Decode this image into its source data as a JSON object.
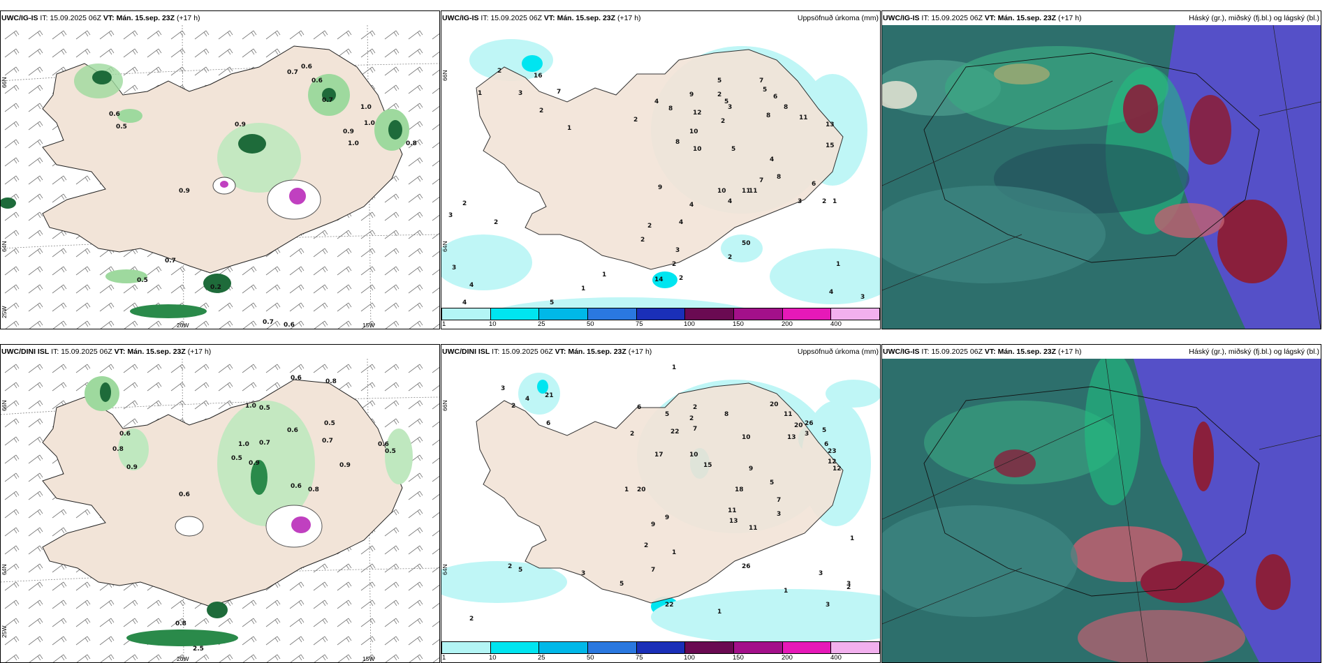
{
  "rows": [
    {
      "id": "top",
      "left": {
        "model": "UWC/IG-IS",
        "it_label": "IT:",
        "it": "15.09.2025 06Z",
        "vt_label": "VT:",
        "vt": "Mán. 15.sep. 23Z",
        "lead": "(+17 h)"
      },
      "mid": {
        "model": "UWC/IG-IS",
        "it_label": "IT:",
        "it": "15.09.2025 06Z",
        "vt_label": "VT:",
        "vt": "Mán. 15.sep. 23Z",
        "lead": "(+17 h)",
        "right": "Uppsöfnuð úrkoma (mm)"
      },
      "right": {
        "model": "UWC/IG-IS",
        "it_label": "IT:",
        "it": "15.09.2025 06Z",
        "vt_label": "VT:",
        "vt": "Mán. 15.sep. 23Z",
        "lead": "(+17 h)",
        "right": "Háský (gr.), miðský (fj.bl.) og lágský (bl.)"
      }
    },
    {
      "id": "bottom",
      "left": {
        "model": "UWC/DINI ISL",
        "it_label": "IT:",
        "it": "15.09.2025 06Z",
        "vt_label": "VT:",
        "vt": "Mán. 15.sep. 23Z",
        "lead": "(+17 h)"
      },
      "mid": {
        "model": "UWC/DINI ISL",
        "it_label": "IT:",
        "it": "15.09.2025 06Z",
        "vt_label": "VT:",
        "vt": "Mán. 15.sep. 23Z",
        "lead": "(+17 h)",
        "right": "Uppsöfnuð úrkoma (mm)"
      },
      "right": {
        "model": "UWC/IG-IS",
        "it_label": "IT:",
        "it": "15.09.2025 06Z",
        "vt_label": "VT:",
        "vt": "Mán. 15.sep. 23Z",
        "lead": "(+17 h)",
        "right": "Háský (gr.), miðský (fj.bl.) og lágský (bl.)"
      }
    }
  ],
  "axis_labels": {
    "lon_20": "20W",
    "lon_15": "15W",
    "lat_66": "66N",
    "lat_64": "64N",
    "lon_25": "25W"
  },
  "colorbar": {
    "labels": [
      "1",
      "10",
      "25",
      "50",
      "75",
      "100",
      "150",
      "200",
      "400"
    ],
    "colors": [
      "#b3f5f5",
      "#00e5f0",
      "#00b8e8",
      "#2a78e0",
      "#1a2fb8",
      "#6a0a52",
      "#a3108a",
      "#e619b8",
      "#f2b0ee"
    ]
  },
  "colors": {
    "land": "#f2e4d8",
    "sea": "#ffffff",
    "precip_light": "#bff6f6",
    "cloud_high": "#3d8f8a",
    "cloud_mid": "#5550c8",
    "cloud_low": "#8a1f3c"
  },
  "wind_numbers_top": [
    "0.7",
    "0.6",
    "0.6",
    "0.6",
    "0.5",
    "0.9",
    "0.9",
    "1.0",
    "1.0",
    "0.8",
    "1.0",
    "0.9",
    "0.7",
    "0.5",
    "0.2",
    "0.7",
    "0.6",
    "0.7"
  ],
  "wind_numbers_bottom": [
    "0.6",
    "0.8",
    "1.0",
    "0.5",
    "0.6",
    "0.8",
    "0.6",
    "0.7",
    "1.0",
    "0.7",
    "0.5",
    "0.5",
    "0.9",
    "0.9",
    "0.6",
    "0.5",
    "0.8",
    "0.6",
    "0.9",
    "0.6",
    "0.8",
    "2.5"
  ],
  "precip_numbers_top": [
    "1",
    "2",
    "16",
    "3",
    "7",
    "2",
    "1",
    "2",
    "4",
    "5",
    "8",
    "9",
    "12",
    "2",
    "3",
    "10",
    "10",
    "8",
    "5",
    "6",
    "8",
    "5",
    "2",
    "7",
    "8",
    "11",
    "13",
    "15",
    "11",
    "5",
    "4",
    "6",
    "9",
    "8",
    "2",
    "10",
    "11",
    "7",
    "4",
    "3",
    "2",
    "4",
    "3",
    "1",
    "4",
    "2",
    "2",
    "2",
    "3",
    "50",
    "2",
    "1",
    "1",
    "2",
    "4",
    "3",
    "14",
    "2",
    "3",
    "5",
    "4",
    "1",
    "4"
  ],
  "precip_numbers_bottom": [
    "1",
    "3",
    "4",
    "21",
    "2",
    "6",
    "2",
    "6",
    "5",
    "2",
    "2",
    "7",
    "8",
    "20",
    "11",
    "20",
    "13",
    "3",
    "5",
    "6",
    "12",
    "26",
    "23",
    "12",
    "22",
    "10",
    "15",
    "17",
    "20",
    "9",
    "10",
    "18",
    "11",
    "13",
    "11",
    "5",
    "3",
    "7",
    "9",
    "26",
    "2",
    "1",
    "9",
    "1",
    "1",
    "2",
    "5",
    "3",
    "7",
    "3",
    "5",
    "3",
    "22",
    "2",
    "1",
    "3",
    "2",
    "1"
  ]
}
